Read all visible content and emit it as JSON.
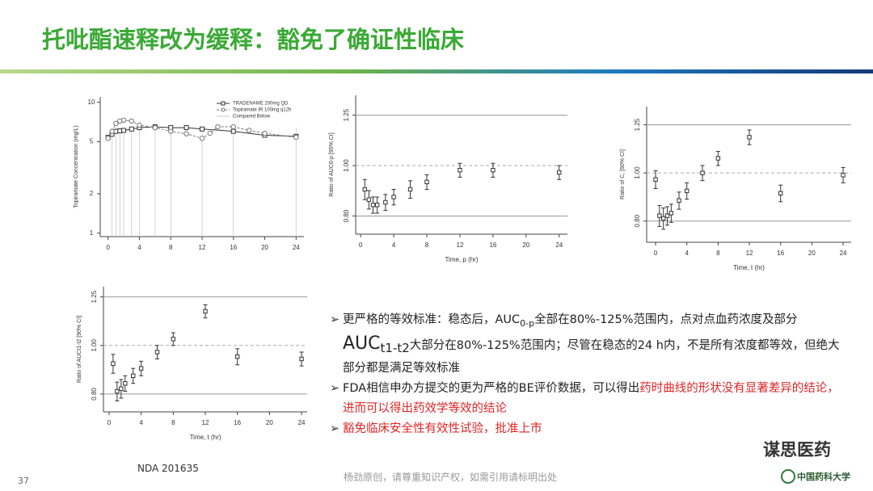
{
  "title": "托吡酯速释改为缓释：豁免了确证性临床",
  "chart_data": [
    {
      "type": "line",
      "y_label": "Topiramate Concentration (mg/L)",
      "log_y": true,
      "xlim": [
        -1,
        25
      ],
      "xticks": [
        0,
        4,
        8,
        12,
        16,
        20,
        24
      ],
      "ylim": [
        0.94,
        11
      ],
      "yticks": [
        1,
        2,
        5,
        10
      ],
      "legend": "top-right",
      "series": [
        {
          "name": "TRADENAME 200mg QD",
          "color": "#333333",
          "marker": "square",
          "dash": false,
          "x": [
            0,
            0.5,
            1,
            1.5,
            2,
            3,
            4,
            6,
            8,
            10,
            12,
            16,
            20,
            24
          ],
          "values": [
            5.4,
            5.7,
            6.0,
            6.05,
            6.1,
            6.25,
            6.4,
            6.5,
            6.4,
            6.4,
            6.25,
            6.0,
            5.6,
            5.5
          ]
        },
        {
          "name": "Topiramate IR 100mg q12h",
          "color": "#777777",
          "marker": "circle",
          "dash": true,
          "x": [
            0,
            0.5,
            1,
            1.5,
            2,
            3,
            4,
            6,
            8,
            10,
            12,
            13,
            14,
            16,
            18,
            20,
            24
          ],
          "values": [
            5.3,
            6.0,
            6.9,
            7.2,
            7.3,
            7.2,
            6.7,
            6.4,
            6.0,
            5.75,
            5.3,
            5.8,
            6.5,
            6.5,
            6.1,
            5.8,
            5.4
          ]
        }
      ],
      "reference_name": "Compared Below",
      "reference_color": "#c8c8c8",
      "reference_x": [
        0.5,
        1,
        1.5,
        2,
        3,
        4,
        6,
        8,
        12,
        16,
        24
      ]
    },
    {
      "type": "errorbar",
      "x_label": "Time, p (hr)",
      "y_label": "Ratio of AUC0-p [90% CI]",
      "log_y": true,
      "xlim": [
        -0.6,
        25
      ],
      "xticks": [
        0,
        4,
        8,
        12,
        16,
        20,
        24
      ],
      "ylim": [
        0.738,
        1.365
      ],
      "yticks": [
        {
          "value": 0.8,
          "label": "0.80"
        },
        {
          "value": 1,
          "label": "1.00"
        },
        {
          "value": 1.25,
          "label": "1.25"
        }
      ],
      "ref_line_styles": [
        "solid",
        "dashed",
        "solid"
      ],
      "color": "#333333",
      "x": [
        0.5,
        1,
        1.5,
        2,
        3,
        4,
        6,
        8,
        12,
        16,
        24
      ],
      "values": [
        0.9,
        0.86,
        0.84,
        0.84,
        0.85,
        0.87,
        0.9,
        0.93,
        0.98,
        0.98,
        0.97
      ],
      "errors": [
        0.04,
        0.035,
        0.03,
        0.03,
        0.03,
        0.03,
        0.035,
        0.03,
        0.03,
        0.03,
        0.03
      ]
    },
    {
      "type": "errorbar",
      "x_label": "Time, t (hr)",
      "y_label": "Ratio of C, [90% CI]",
      "log_y": true,
      "xlim": [
        -1.14,
        25.03
      ],
      "xticks": [
        0,
        4,
        8,
        12,
        16,
        20,
        24
      ],
      "ylim": [
        0.725,
        1.36
      ],
      "yticks": [
        {
          "value": 0.8,
          "label": "0.80"
        },
        {
          "value": 1,
          "label": "1.00"
        },
        {
          "value": 1.25,
          "label": "1.25"
        }
      ],
      "ref_line_styles": [
        "solid",
        "dashed",
        "solid"
      ],
      "color": "#333333",
      "x": [
        0,
        0.5,
        1,
        1.5,
        2,
        3,
        4,
        6,
        8,
        12,
        16,
        24
      ],
      "values": [
        0.97,
        0.82,
        0.81,
        0.82,
        0.83,
        0.88,
        0.92,
        1.0,
        1.07,
        1.18,
        0.91,
        0.99
      ],
      "errors": [
        0.04,
        0.04,
        0.04,
        0.035,
        0.035,
        0.035,
        0.035,
        0.035,
        0.035,
        0.04,
        0.035,
        0.035
      ]
    },
    {
      "type": "errorbar",
      "x_label": "Time, t (hr)",
      "y_label": "Ratio of AUCt1-t2 [90% CI]",
      "log_y": true,
      "xlim": [
        -0.7,
        24.7
      ],
      "xticks": [
        0,
        4,
        8,
        12,
        16,
        20,
        24
      ],
      "ylim": [
        0.737,
        1.31
      ],
      "yticks": [
        {
          "value": 0.8,
          "label": "0.80"
        },
        {
          "value": 1,
          "label": "1.00"
        },
        {
          "value": 1.25,
          "label": "1.25"
        }
      ],
      "ref_line_styles": [
        "solid",
        "dashed",
        "solid"
      ],
      "color": "#333333",
      "x": [
        0.5,
        1,
        1.5,
        2,
        3,
        4,
        6,
        8,
        12,
        16,
        24
      ],
      "values": [
        0.92,
        0.81,
        0.82,
        0.84,
        0.87,
        0.9,
        0.97,
        1.03,
        1.17,
        0.95,
        0.94
      ],
      "errors": [
        0.04,
        0.035,
        0.035,
        0.03,
        0.03,
        0.03,
        0.03,
        0.03,
        0.035,
        0.035,
        0.03
      ]
    }
  ],
  "bullets": [
    [
      {
        "text": "更严格的等效标准：稳态后，AUC"
      },
      {
        "text": "0-p",
        "sub": true
      },
      {
        "text": "全部在80%-125%范围内，点对点血药浓度及部分"
      },
      {
        "text": "AUC",
        "large": true
      },
      {
        "text": "t1-t2",
        "sub": true,
        "large": true
      },
      {
        "text": "大部分在80%-125%范围内；尽管在稳态的24 h内，不是所有浓度都等效，但绝大部分都是满足等效标准"
      }
    ],
    [
      {
        "text": "FDA相信申办方提交的更为严格的BE评价数据，可以得出"
      },
      {
        "text": "药时曲线的形状没有显著差异的结论，进而可以得出药效学等效的结论",
        "color": "#e02424"
      }
    ],
    [
      {
        "text": "豁免临床安全性有效性试验，批准上市",
        "color": "#e02424"
      }
    ]
  ],
  "footer": {
    "page": "37",
    "source": "NDA 201635",
    "notice": "杨劲原创，请尊重知识产权，如需引用请标明出处",
    "brand": "谋思医药",
    "university": "中国药科大学"
  }
}
